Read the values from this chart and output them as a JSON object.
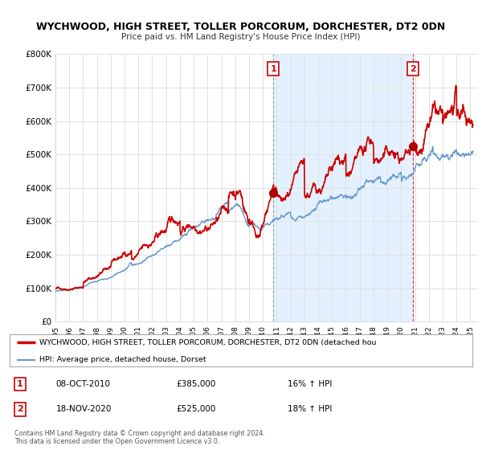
{
  "title": "WYCHWOOD, HIGH STREET, TOLLER PORCORUM, DORCHESTER, DT2 0DN",
  "subtitle": "Price paid vs. HM Land Registry's House Price Index (HPI)",
  "ylim": [
    0,
    800000
  ],
  "yticks": [
    0,
    100000,
    200000,
    300000,
    400000,
    500000,
    600000,
    700000,
    800000
  ],
  "ytick_labels": [
    "£0",
    "£100K",
    "£200K",
    "£300K",
    "£400K",
    "£500K",
    "£600K",
    "£700K",
    "£800K"
  ],
  "xlim_start": 1995.0,
  "xlim_end": 2025.5,
  "xticks": [
    1995,
    1996,
    1997,
    1998,
    1999,
    2000,
    2001,
    2002,
    2003,
    2004,
    2005,
    2006,
    2007,
    2008,
    2009,
    2010,
    2011,
    2012,
    2013,
    2014,
    2015,
    2016,
    2017,
    2018,
    2019,
    2020,
    2021,
    2022,
    2023,
    2024,
    2025
  ],
  "bg_color": "#ffffff",
  "grid_color": "#e0e0e0",
  "shade_color": "#ddeeff",
  "red_line_color": "#cc0000",
  "blue_line_color": "#6699cc",
  "sale1_x": 2010.77,
  "sale1_y": 385000,
  "sale2_x": 2020.88,
  "sale2_y": 525000,
  "vline1_x": 2010.77,
  "vline2_x": 2020.88,
  "legend_line1": "WYCHWOOD, HIGH STREET, TOLLER PORCORUM, DORCHESTER, DT2 0DN (detached hou",
  "legend_line2": "HPI: Average price, detached house, Dorset",
  "annotation1_num": "1",
  "annotation1_date": "08-OCT-2010",
  "annotation1_price": "£385,000",
  "annotation1_hpi": "16% ↑ HPI",
  "annotation2_num": "2",
  "annotation2_date": "18-NOV-2020",
  "annotation2_price": "£525,000",
  "annotation2_hpi": "18% ↑ HPI",
  "footnote": "Contains HM Land Registry data © Crown copyright and database right 2024.\nThis data is licensed under the Open Government Licence v3.0."
}
